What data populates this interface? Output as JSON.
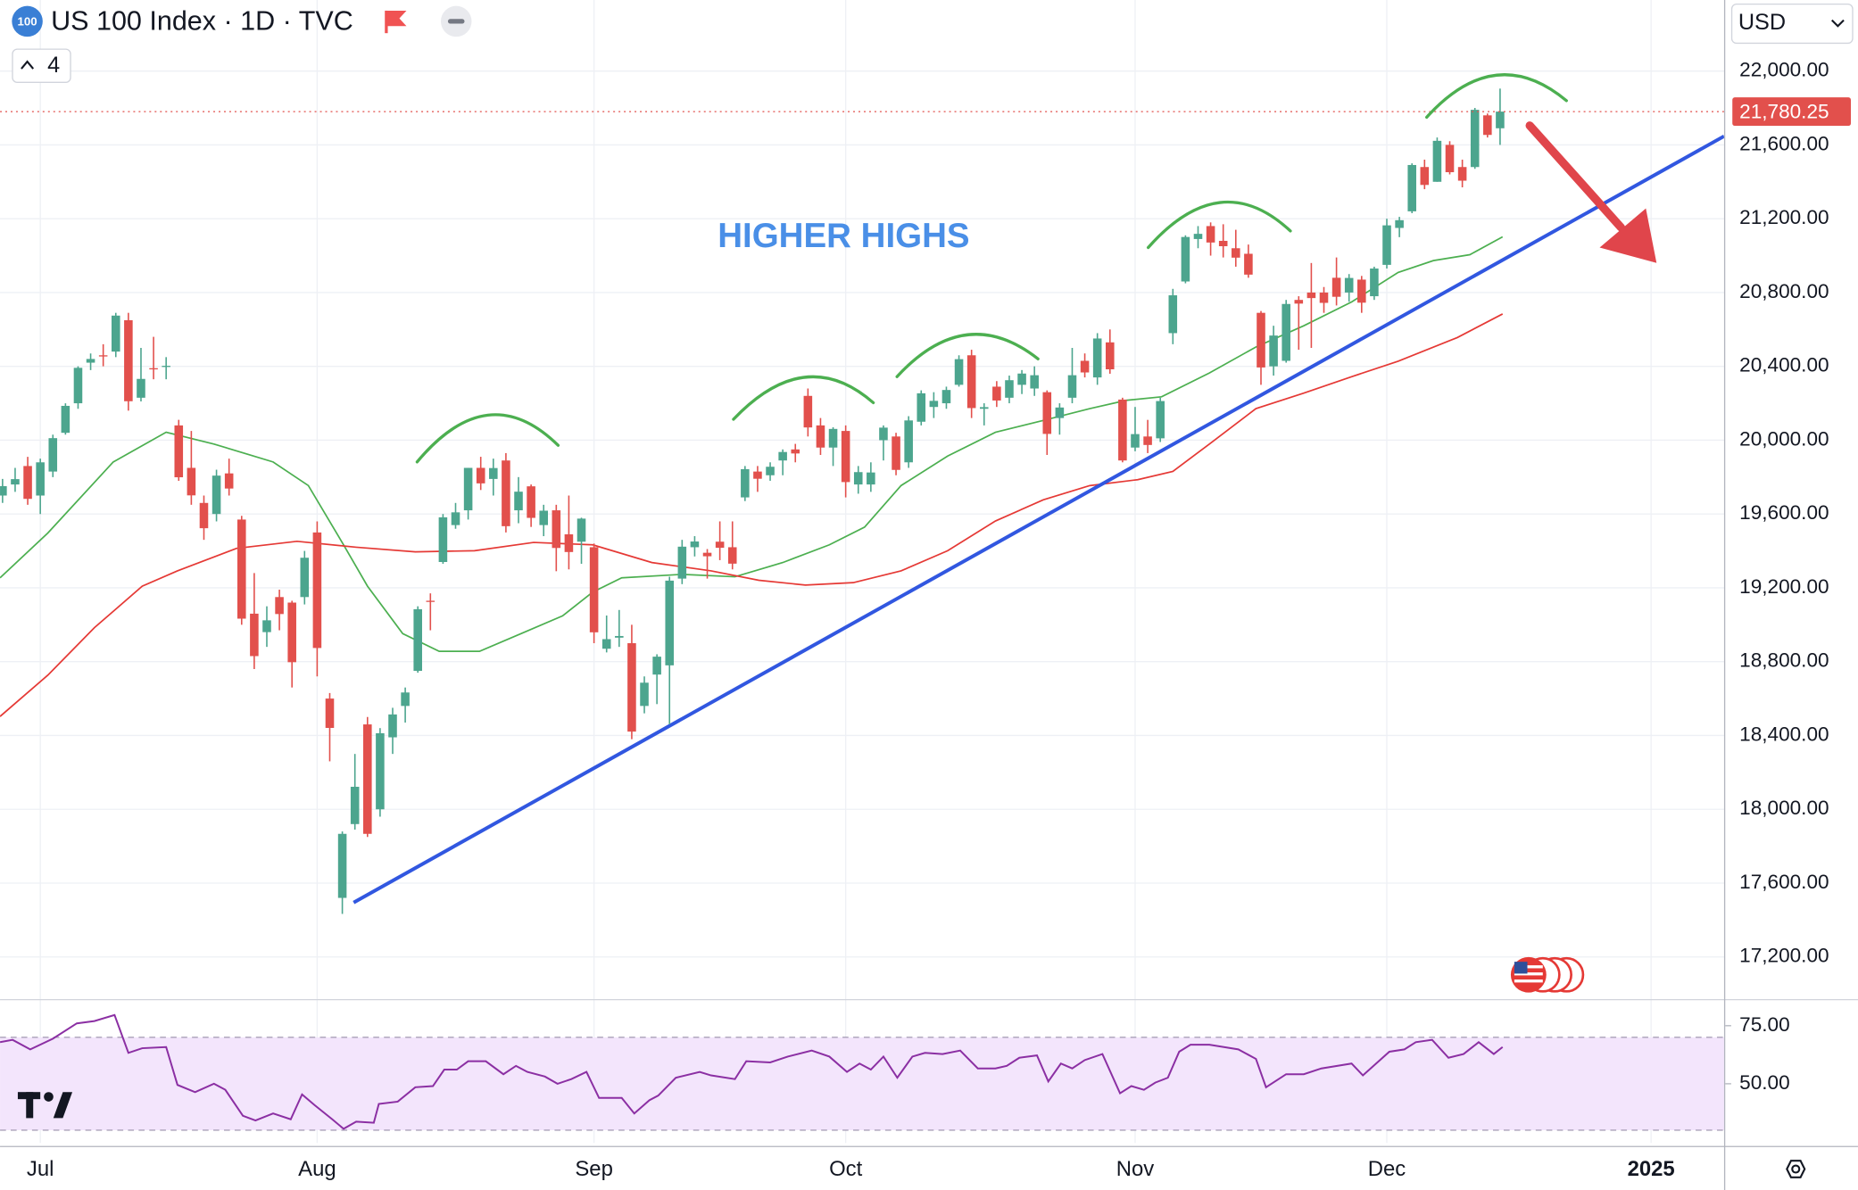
{
  "header": {
    "logo": "100",
    "indicator_count": 4,
    "currency": "USD"
  },
  "chart_data": [
    {
      "type": "candlestick",
      "title": "US 100 Index · 1D · TVC",
      "annotation": "HIGHER HIGHS",
      "up_color": "#4ca58e",
      "down_color": "#e2504c",
      "xlim": [
        -0.2,
        136.8
      ],
      "ylim": [
        16975,
        22385
      ],
      "xticks": [
        {
          "value": 3,
          "label": "Jul"
        },
        {
          "value": 25,
          "label": "Aug"
        },
        {
          "value": 47,
          "label": "Sep"
        },
        {
          "value": 67,
          "label": "Oct"
        },
        {
          "value": 90,
          "label": "Nov"
        },
        {
          "value": 110,
          "label": "Dec"
        },
        {
          "value": 131,
          "label": "2025"
        }
      ],
      "yticks": [
        {
          "value": 17200,
          "label": "17,200.00"
        },
        {
          "value": 17600,
          "label": "17,600.00"
        },
        {
          "value": 18000,
          "label": "18,000.00"
        },
        {
          "value": 18400,
          "label": "18,400.00"
        },
        {
          "value": 18800,
          "label": "18,800.00"
        },
        {
          "value": 19200,
          "label": "19,200.00"
        },
        {
          "value": 19600,
          "label": "19,600.00"
        },
        {
          "value": 20000,
          "label": "20,000.00"
        },
        {
          "value": 20400,
          "label": "20,400.00"
        },
        {
          "value": 20800,
          "label": "20,800.00"
        },
        {
          "value": 21200,
          "label": "21,200.00"
        },
        {
          "value": 21600,
          "label": "21,600.00"
        },
        {
          "value": 22000,
          "label": "22,000.00"
        }
      ],
      "grid": true,
      "last_price": {
        "value": 21780.25,
        "label": "21,780.25",
        "color": "#e2504c"
      },
      "ohlc": [
        [
          19700,
          19790,
          19660,
          19751
        ],
        [
          19760,
          19850,
          19720,
          19789
        ],
        [
          19860,
          19910,
          19650,
          19682
        ],
        [
          19700,
          19900,
          19600,
          19880
        ],
        [
          19830,
          20030,
          19800,
          20011
        ],
        [
          20040,
          20200,
          20030,
          20186
        ],
        [
          20200,
          20400,
          20170,
          20392
        ],
        [
          20420,
          20470,
          20380,
          20440
        ],
        [
          20460,
          20520,
          20400,
          20456
        ],
        [
          20480,
          20690,
          20450,
          20675
        ],
        [
          20650,
          20690,
          20160,
          20211
        ],
        [
          20230,
          20500,
          20210,
          20332
        ],
        [
          20390,
          20560,
          20330,
          20384
        ],
        [
          20400,
          20450,
          20330,
          20403
        ],
        [
          20080,
          20110,
          19780,
          19799
        ],
        [
          19850,
          20050,
          19650,
          19701
        ],
        [
          19660,
          19700,
          19460,
          19523
        ],
        [
          19600,
          19840,
          19560,
          19808
        ],
        [
          19820,
          19900,
          19700,
          19738
        ],
        [
          19570,
          19590,
          19000,
          19033
        ],
        [
          19060,
          19280,
          18760,
          18830
        ],
        [
          18960,
          19100,
          18880,
          19024
        ],
        [
          19150,
          19190,
          18970,
          19058
        ],
        [
          19120,
          19130,
          18660,
          18797
        ],
        [
          19150,
          19400,
          19110,
          19363
        ],
        [
          19500,
          19560,
          18720,
          18874
        ],
        [
          18600,
          18630,
          18260,
          18441
        ],
        [
          17520,
          17880,
          17433,
          17867
        ],
        [
          17920,
          18300,
          17890,
          18122
        ],
        [
          18460,
          18500,
          17850,
          17867
        ],
        [
          18000,
          18440,
          17960,
          18412
        ],
        [
          18390,
          18550,
          18300,
          18514
        ],
        [
          18560,
          18660,
          18470,
          18633
        ],
        [
          18750,
          19100,
          18740,
          19084
        ],
        [
          19130,
          19170,
          18970,
          19124
        ],
        [
          19340,
          19600,
          19330,
          19582
        ],
        [
          19540,
          19660,
          19520,
          19609
        ],
        [
          19620,
          19850,
          19570,
          19850
        ],
        [
          19850,
          19910,
          19730,
          19766
        ],
        [
          19790,
          19900,
          19700,
          19849
        ],
        [
          19890,
          19930,
          19500,
          19534
        ],
        [
          19620,
          19800,
          19550,
          19721
        ],
        [
          19750,
          19760,
          19530,
          19579
        ],
        [
          19540,
          19650,
          19480,
          19618
        ],
        [
          19620,
          19650,
          19290,
          19416
        ],
        [
          19490,
          19700,
          19300,
          19394
        ],
        [
          19450,
          19580,
          19330,
          19575
        ],
        [
          19420,
          19440,
          18900,
          18959
        ],
        [
          18870,
          19050,
          18850,
          18922
        ],
        [
          18930,
          19080,
          18880,
          18939
        ],
        [
          18900,
          19000,
          18380,
          18421
        ],
        [
          18560,
          18720,
          18520,
          18686
        ],
        [
          18730,
          18840,
          18570,
          18827
        ],
        [
          18780,
          19260,
          18460,
          19239
        ],
        [
          19250,
          19460,
          19220,
          19423
        ],
        [
          19420,
          19480,
          19370,
          19451
        ],
        [
          19390,
          19410,
          19250,
          19371
        ],
        [
          19450,
          19560,
          19350,
          19417
        ],
        [
          19420,
          19560,
          19300,
          19331
        ],
        [
          19690,
          19860,
          19670,
          19843
        ],
        [
          19830,
          19860,
          19720,
          19791
        ],
        [
          19810,
          19880,
          19780,
          19856
        ],
        [
          19890,
          19950,
          19810,
          19936
        ],
        [
          19950,
          19980,
          19880,
          19928
        ],
        [
          20240,
          20280,
          20020,
          20069
        ],
        [
          20080,
          20120,
          19920,
          19960
        ],
        [
          19960,
          20070,
          19860,
          20061
        ],
        [
          20050,
          20080,
          19690,
          19773
        ],
        [
          19760,
          19860,
          19710,
          19827
        ],
        [
          19760,
          19880,
          19720,
          19825
        ],
        [
          20000,
          20080,
          19890,
          20068
        ],
        [
          20020,
          20040,
          19810,
          19839
        ],
        [
          19880,
          20130,
          19850,
          20107
        ],
        [
          20100,
          20270,
          20080,
          20254
        ],
        [
          20180,
          20260,
          20120,
          20213
        ],
        [
          20200,
          20290,
          20170,
          20272
        ],
        [
          20300,
          20460,
          20290,
          20439
        ],
        [
          20460,
          20490,
          20120,
          20174
        ],
        [
          20170,
          20200,
          20080,
          20179
        ],
        [
          20290,
          20320,
          20180,
          20215
        ],
        [
          20230,
          20350,
          20200,
          20325
        ],
        [
          20300,
          20380,
          20250,
          20361
        ],
        [
          20280,
          20400,
          20240,
          20352
        ],
        [
          20260,
          20270,
          19920,
          20034
        ],
        [
          20120,
          20200,
          20030,
          20177
        ],
        [
          20230,
          20500,
          20200,
          20352
        ],
        [
          20430,
          20470,
          20340,
          20367
        ],
        [
          20340,
          20580,
          20300,
          20551
        ],
        [
          20530,
          20600,
          20360,
          20384
        ],
        [
          20220,
          20230,
          19880,
          19890
        ],
        [
          19960,
          20180,
          19940,
          20033
        ],
        [
          20020,
          20110,
          19930,
          19974
        ],
        [
          20010,
          20230,
          19990,
          20212
        ],
        [
          20580,
          20820,
          20520,
          20785
        ],
        [
          20860,
          21110,
          20850,
          21101
        ],
        [
          21090,
          21160,
          21040,
          21118
        ],
        [
          21160,
          21180,
          21000,
          21071
        ],
        [
          21080,
          21170,
          20990,
          21051
        ],
        [
          21040,
          21140,
          20940,
          20989
        ],
        [
          21010,
          21060,
          20880,
          20897
        ],
        [
          20690,
          20700,
          20300,
          20394
        ],
        [
          20400,
          20620,
          20350,
          20567
        ],
        [
          20430,
          20760,
          20420,
          20738
        ],
        [
          20760,
          20780,
          20490,
          20740
        ],
        [
          20800,
          20960,
          20500,
          20770
        ],
        [
          20800,
          20830,
          20690,
          20744
        ],
        [
          20880,
          20990,
          20730,
          20777
        ],
        [
          20800,
          20900,
          20750,
          20879
        ],
        [
          20870,
          20890,
          20690,
          20745
        ],
        [
          20780,
          20940,
          20760,
          20930
        ],
        [
          20950,
          21200,
          20930,
          21164
        ],
        [
          21150,
          21210,
          21100,
          21192
        ],
        [
          21240,
          21500,
          21230,
          21491
        ],
        [
          21480,
          21520,
          21360,
          21383
        ],
        [
          21400,
          21640,
          21400,
          21622
        ],
        [
          21600,
          21620,
          21440,
          21452
        ],
        [
          21480,
          21520,
          21370,
          21406
        ],
        [
          21480,
          21800,
          21470,
          21790
        ],
        [
          21760,
          21770,
          21640,
          21654
        ],
        [
          21690,
          21905,
          21600,
          21780.25
        ]
      ],
      "series": [
        {
          "color": "#4caf50",
          "x": [
            -0.2,
            3.6,
            8.8,
            13.0,
            16.8,
            21.5,
            24.3,
            27.1,
            29.0,
            31.8,
            34.7,
            37.9,
            41.2,
            44.5,
            46.9,
            49.2,
            54.0,
            58.2,
            62.0,
            65.7,
            68.5,
            71.4,
            75.1,
            78.9,
            82.7,
            86.4,
            89.3,
            92.1,
            95.9,
            99.6,
            103.4,
            107.2,
            110.9,
            113.7,
            116.6,
            119.2
          ],
          "values": [
            19254,
            19497,
            19882,
            20043,
            19979,
            19882,
            19754,
            19433,
            19209,
            18952,
            18856,
            18856,
            18952,
            19048,
            19177,
            19254,
            19273,
            19260,
            19337,
            19433,
            19529,
            19754,
            19914,
            20043,
            20107,
            20171,
            20216,
            20235,
            20364,
            20505,
            20620,
            20749,
            20909,
            20973,
            21005,
            21102
          ]
        },
        {
          "color": "#e53935",
          "x": [
            -0.2,
            3.6,
            7.3,
            11.1,
            13.9,
            18.6,
            23.4,
            28.1,
            32.8,
            37.5,
            42.2,
            46.9,
            51.6,
            56.3,
            60.1,
            63.8,
            67.6,
            71.4,
            75.1,
            78.9,
            82.7,
            86.4,
            90.2,
            93.0,
            95.9,
            99.6,
            103.4,
            107.2,
            110.9,
            115.6,
            119.2
          ],
          "values": [
            18503,
            18727,
            18984,
            19209,
            19292,
            19414,
            19452,
            19420,
            19395,
            19401,
            19446,
            19433,
            19337,
            19292,
            19241,
            19215,
            19228,
            19292,
            19401,
            19562,
            19677,
            19754,
            19786,
            19831,
            19979,
            20171,
            20255,
            20344,
            20428,
            20556,
            20684
          ]
        }
      ],
      "trendline": {
        "color": "#3157e0",
        "x": [
          27.9,
          136.8
        ],
        "values": [
          17495,
          21647
        ]
      }
    },
    {
      "type": "line",
      "color": "#8b2fa3",
      "band": [
        30,
        70
      ],
      "band_color": "#f3e5fc",
      "ylim": [
        24.5,
        85.7
      ],
      "yticks": [
        {
          "value": 75,
          "label": "75.00"
        },
        {
          "value": 50,
          "label": "50.00"
        }
      ],
      "x": [
        -0.2,
        0.8,
        2.2,
        4.0,
        5.9,
        7.3,
        8.9,
        10.0,
        11.1,
        13.0,
        13.9,
        15.3,
        16.8,
        17.7,
        19.1,
        20.1,
        21.5,
        22.9,
        23.8,
        24.8,
        26.2,
        27.1,
        28.1,
        29.5,
        29.9,
        31.4,
        32.8,
        34.2,
        35.1,
        36.1,
        37.0,
        38.4,
        39.8,
        40.8,
        41.7,
        43.1,
        44.1,
        45.2,
        46.4,
        47.4,
        49.2,
        50.2,
        51.4,
        52.1,
        53.5,
        55.4,
        56.3,
        58.2,
        59.1,
        61.0,
        62.4,
        64.3,
        65.7,
        67.1,
        68.1,
        69.0,
        70.0,
        71.1,
        72.3,
        73.3,
        74.7,
        76.1,
        77.5,
        78.9,
        79.8,
        80.8,
        82.2,
        83.1,
        84.1,
        85.0,
        86.0,
        87.4,
        88.8,
        89.7,
        90.7,
        91.6,
        92.6,
        93.5,
        94.4,
        95.9,
        98.2,
        99.6,
        100.4,
        102.0,
        103.4,
        104.8,
        107.2,
        108.1,
        110.2,
        111.4,
        112.3,
        113.6,
        114.9,
        116.1,
        117.3,
        118.5,
        119.2
      ],
      "values": [
        67.9,
        68.9,
        64.8,
        69.4,
        76.0,
        77.0,
        79.6,
        63.3,
        65.3,
        65.8,
        49.5,
        46.4,
        50.0,
        47.4,
        36.2,
        34.2,
        37.2,
        34.7,
        45.4,
        40.8,
        34.7,
        30.6,
        33.7,
        33.2,
        41.3,
        42.3,
        48.5,
        49.0,
        56.1,
        56.1,
        59.7,
        59.7,
        54.1,
        57.7,
        55.1,
        53.1,
        50.0,
        52.0,
        55.1,
        43.9,
        43.9,
        37.2,
        42.9,
        44.9,
        52.6,
        55.1,
        53.6,
        52.0,
        59.7,
        59.2,
        61.7,
        64.3,
        61.7,
        55.1,
        58.7,
        56.1,
        61.7,
        52.6,
        61.7,
        63.3,
        62.8,
        64.3,
        56.6,
        56.6,
        57.7,
        61.2,
        62.2,
        51.0,
        58.7,
        56.6,
        60.2,
        62.8,
        45.9,
        49.0,
        47.4,
        50.5,
        52.6,
        63.8,
        66.8,
        66.8,
        64.8,
        60.7,
        48.5,
        54.1,
        54.1,
        56.6,
        58.7,
        53.6,
        63.8,
        64.8,
        67.9,
        68.9,
        61.2,
        62.8,
        67.9,
        62.8,
        65.8
      ]
    }
  ]
}
